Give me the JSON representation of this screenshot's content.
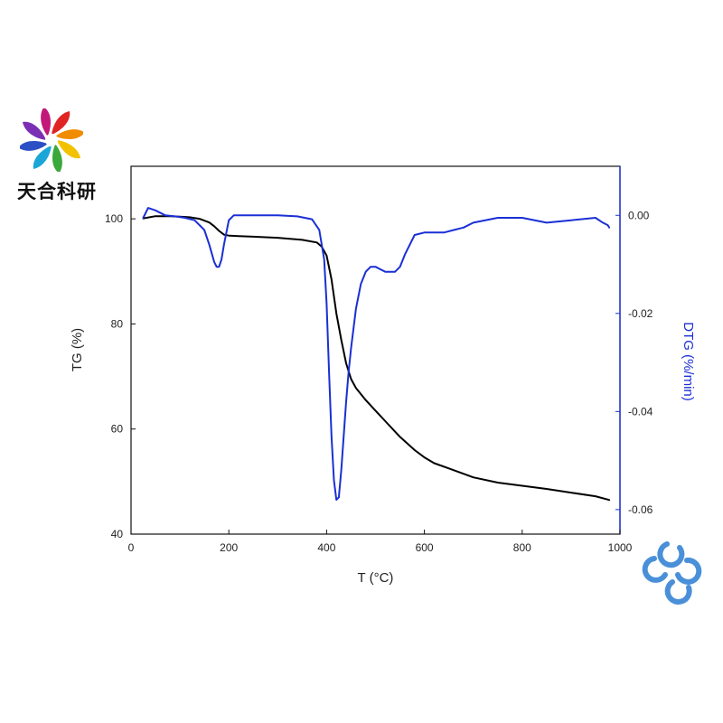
{
  "brand": {
    "name": "天合科研",
    "logo_icon": "rainbow-swirl-icon",
    "corner_icon": "blue-rings-icon",
    "corner_color": "#4a90d9"
  },
  "chart_data": {
    "type": "line",
    "xlabel": "T (°C)",
    "ylabel_left": "TG (%)",
    "ylabel_right": "DTG (%/min)",
    "xlim": [
      0,
      1000
    ],
    "ylim_left": [
      40,
      110
    ],
    "ylim_right": [
      -0.065,
      0.01
    ],
    "x_ticks": [
      "0",
      "200",
      "400",
      "600",
      "800",
      "1000"
    ],
    "y_ticks_left": [
      "40",
      "60",
      "80",
      "100"
    ],
    "y_ticks_right": [
      "-0.06",
      "-0.04",
      "-0.02",
      "0.00"
    ],
    "grid": false,
    "colors": {
      "TG": "#000000",
      "DTG": "#1a2fd6",
      "right_axis": "#1a2fd6"
    },
    "series": [
      {
        "axis": "left",
        "x": [
          25,
          50,
          80,
          100,
          120,
          140,
          160,
          170,
          180,
          190,
          200,
          220,
          250,
          300,
          350,
          380,
          390,
          400,
          410,
          420,
          430,
          440,
          450,
          460,
          480,
          500,
          520,
          550,
          580,
          600,
          620,
          650,
          700,
          750,
          800,
          850,
          900,
          950,
          978
        ],
        "y": [
          100.1,
          100.5,
          100.5,
          100.4,
          100.3,
          100.0,
          99.3,
          98.6,
          97.7,
          97.0,
          96.8,
          96.7,
          96.6,
          96.4,
          96.0,
          95.5,
          94.7,
          93.0,
          88.5,
          82.0,
          77.0,
          72.5,
          69.5,
          67.8,
          65.5,
          63.5,
          61.5,
          58.5,
          56.0,
          54.6,
          53.5,
          52.5,
          50.8,
          49.8,
          49.2,
          48.6,
          47.9,
          47.2,
          46.5
        ]
      },
      {
        "axis": "right",
        "x": [
          25,
          35,
          50,
          70,
          90,
          110,
          130,
          150,
          160,
          170,
          175,
          180,
          185,
          190,
          200,
          210,
          230,
          260,
          300,
          340,
          370,
          385,
          395,
          400,
          405,
          410,
          415,
          420,
          425,
          430,
          435,
          440,
          445,
          450,
          455,
          460,
          470,
          480,
          490,
          500,
          510,
          520,
          530,
          540,
          550,
          560,
          570,
          580,
          600,
          620,
          640,
          660,
          680,
          700,
          750,
          800,
          850,
          900,
          950,
          965,
          975,
          978
        ],
        "y": [
          -0.0005,
          0.0015,
          0.001,
          0.0,
          -0.0002,
          -0.0005,
          -0.001,
          -0.003,
          -0.006,
          -0.0095,
          -0.0105,
          -0.0105,
          -0.009,
          -0.006,
          -0.001,
          0.0,
          0.0,
          0.0,
          0.0,
          -0.0002,
          -0.0008,
          -0.003,
          -0.009,
          -0.018,
          -0.032,
          -0.045,
          -0.054,
          -0.058,
          -0.0575,
          -0.052,
          -0.045,
          -0.038,
          -0.032,
          -0.027,
          -0.023,
          -0.019,
          -0.014,
          -0.0115,
          -0.0105,
          -0.0105,
          -0.011,
          -0.0115,
          -0.0115,
          -0.0115,
          -0.0105,
          -0.008,
          -0.006,
          -0.004,
          -0.0035,
          -0.0035,
          -0.0035,
          -0.003,
          -0.0025,
          -0.0015,
          -0.0005,
          -0.0005,
          -0.0015,
          -0.001,
          -0.0005,
          -0.0015,
          -0.002,
          -0.0025
        ]
      }
    ]
  }
}
